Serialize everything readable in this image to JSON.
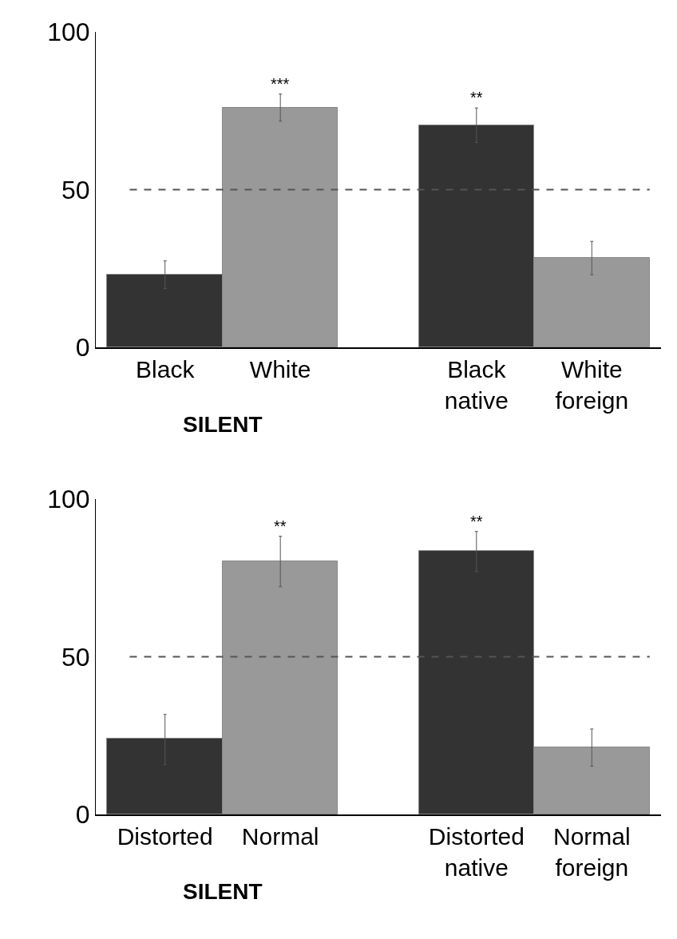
{
  "chart_data": [
    {
      "type": "bar",
      "categories": [
        "Black",
        "White",
        "Black native",
        "White foreign"
      ],
      "values": [
        23,
        75.9,
        70.4,
        28.3
      ],
      "colors": [
        "#333333",
        "#999999",
        "#333333",
        "#999999"
      ],
      "errors": [
        [
          18.6,
          27.4
        ],
        [
          71.7,
          80.3
        ],
        [
          64.9,
          75.9
        ],
        [
          23,
          33.6
        ]
      ],
      "ylim": [
        0,
        100
      ],
      "yticks": [
        0,
        50,
        100
      ],
      "grid": false,
      "ref_lines": [
        {
          "axis": "y",
          "value": 50,
          "line_style": "dashed",
          "color": "#555555"
        }
      ],
      "annotations": [
        {
          "text": "***",
          "x": "White",
          "y": 75.9
        },
        {
          "text": "**",
          "x": "Black native",
          "y": 70.4
        },
        "SILENT"
      ]
    },
    {
      "type": "bar",
      "categories": [
        "Distorted",
        "Normal",
        "Distorted native",
        "Normal foreign"
      ],
      "values": [
        24.1,
        80.3,
        83.6,
        21.2
      ],
      "colors": [
        "#333333",
        "#999999",
        "#333333",
        "#999999"
      ],
      "errors": [
        [
          15.8,
          31.7
        ],
        [
          72.2,
          88.2
        ],
        [
          77,
          89.7
        ],
        [
          15.3,
          27.1
        ]
      ],
      "ylim": [
        0,
        100
      ],
      "yticks": [
        0,
        50,
        100
      ],
      "grid": false,
      "ref_lines": [
        {
          "axis": "y",
          "value": 50,
          "line_style": "dashed",
          "color": "#555555"
        }
      ],
      "annotations": [
        {
          "text": "**",
          "x": "Normal",
          "y": 80.3
        },
        {
          "text": "**",
          "x": "Distorted native",
          "y": 83.6
        },
        "SILENT"
      ]
    }
  ]
}
